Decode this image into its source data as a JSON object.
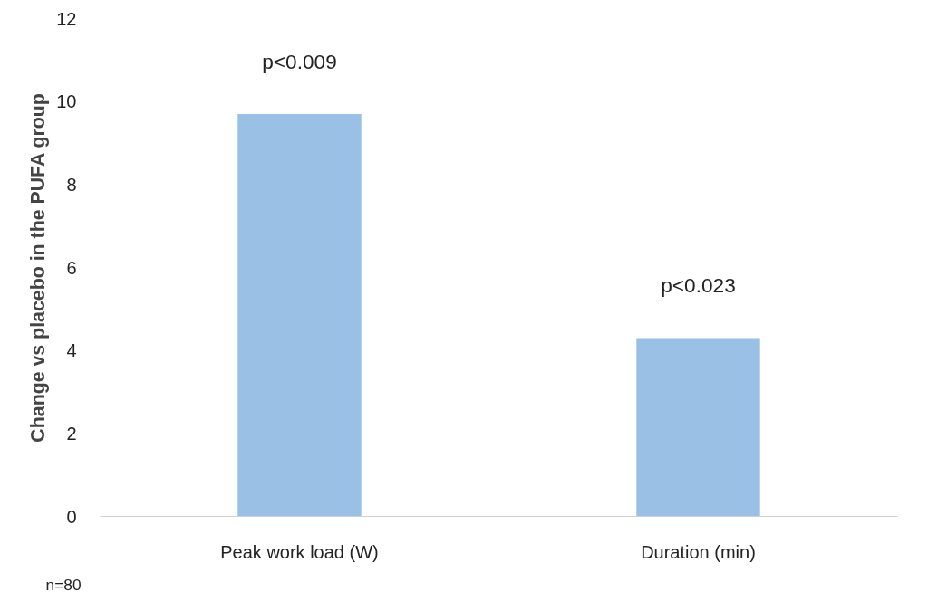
{
  "chart_data": {
    "type": "bar",
    "ylabel": "Change vs placebo in the PUFA group",
    "categories": [
      "Peak work load (W)",
      "Duration (min)"
    ],
    "values": [
      9.7,
      4.3
    ],
    "color": "#9ac0e6",
    "ylim": [
      0,
      12
    ],
    "yticks": [
      0,
      2,
      4,
      6,
      8,
      10,
      12
    ],
    "grid": false,
    "annotations": [
      "p<0.009",
      "p<0.023",
      "n=80"
    ]
  }
}
